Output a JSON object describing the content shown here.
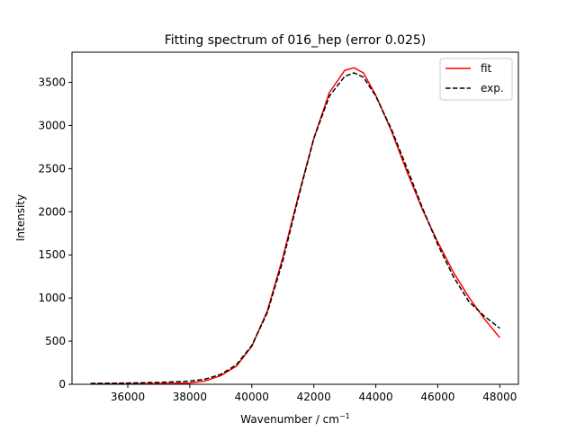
{
  "chart_data": {
    "type": "line",
    "title": "Fitting spectrum of 016_hep (error 0.025)",
    "xlabel": "Wavenumber / cm",
    "xlabel_sup": "−1",
    "ylabel": "Intensity",
    "xlim": [
      34200,
      48600
    ],
    "ylim": [
      0,
      3850
    ],
    "xticks": [
      36000,
      38000,
      40000,
      42000,
      44000,
      46000,
      48000
    ],
    "yticks": [
      0,
      500,
      1000,
      1500,
      2000,
      2500,
      3000,
      3500
    ],
    "grid": false,
    "legend_position": "top-right",
    "series": [
      {
        "name": "fit",
        "style": "solid",
        "color": "#ff0000",
        "x": [
          34800,
          36000,
          37000,
          38000,
          38500,
          39000,
          39500,
          40000,
          40500,
          41000,
          41500,
          42000,
          42500,
          43000,
          43300,
          43600,
          44000,
          44500,
          45000,
          45500,
          46000,
          46500,
          47000,
          47500,
          48000
        ],
        "y": [
          3,
          5,
          7,
          15,
          40,
          100,
          210,
          440,
          850,
          1470,
          2180,
          2850,
          3380,
          3640,
          3670,
          3610,
          3350,
          2940,
          2470,
          2030,
          1650,
          1300,
          1010,
          760,
          540
        ]
      },
      {
        "name": "exp.",
        "style": "dashed",
        "color": "#000000",
        "x": [
          34800,
          36000,
          37000,
          38000,
          38500,
          39000,
          39500,
          40000,
          40500,
          41000,
          41500,
          42000,
          42500,
          43000,
          43300,
          43600,
          44000,
          44500,
          45000,
          45500,
          46000,
          46500,
          47000,
          47500,
          48000
        ],
        "y": [
          10,
          15,
          22,
          35,
          60,
          115,
          225,
          450,
          830,
          1430,
          2160,
          2850,
          3340,
          3570,
          3610,
          3560,
          3340,
          2960,
          2510,
          2050,
          1620,
          1250,
          960,
          790,
          650
        ]
      }
    ]
  }
}
